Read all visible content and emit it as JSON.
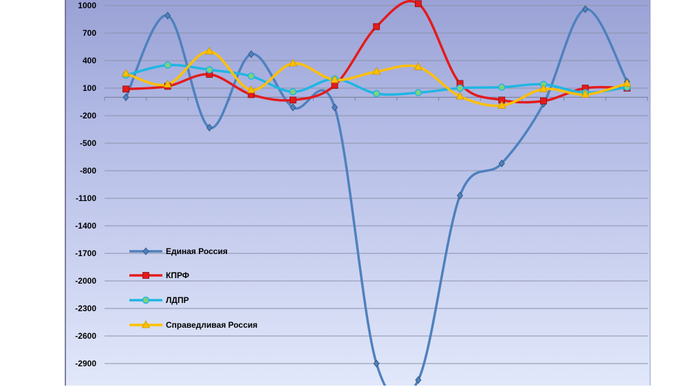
{
  "chart_data": {
    "type": "line",
    "title": "",
    "xlabel": "",
    "ylabel": "",
    "ylim": [
      -3100,
      1000
    ],
    "y_ticks": [
      1000,
      700,
      400,
      100,
      -200,
      -500,
      -800,
      -1100,
      -1400,
      -1700,
      -2000,
      -2300,
      -2600,
      -2900
    ],
    "grid": true,
    "legend_position": "bottom-left",
    "x": [
      1,
      2,
      3,
      4,
      5,
      6,
      7,
      8,
      9,
      10,
      11,
      12,
      13
    ],
    "series": [
      {
        "name": "Единая Россия",
        "color": "#4f81bd",
        "marker": "diamond",
        "values": [
          0,
          890,
          -330,
          470,
          -110,
          -110,
          -2900,
          -3080,
          -1070,
          -720,
          -70,
          960,
          170
        ]
      },
      {
        "name": "КПРФ",
        "color": "#e31b1b",
        "marker": "square",
        "values": [
          90,
          120,
          250,
          30,
          -30,
          130,
          770,
          1020,
          150,
          -30,
          -40,
          100,
          100
        ]
      },
      {
        "name": "ЛДПР",
        "color": "#1fb6e3",
        "marker": "circle",
        "values": [
          240,
          350,
          300,
          230,
          60,
          200,
          40,
          50,
          100,
          110,
          140,
          50,
          110
        ]
      },
      {
        "name": "Справедливая Россия",
        "color": "#ffc000",
        "marker": "triangle",
        "values": [
          260,
          140,
          500,
          80,
          370,
          190,
          280,
          330,
          10,
          -90,
          90,
          30,
          150
        ]
      }
    ]
  }
}
